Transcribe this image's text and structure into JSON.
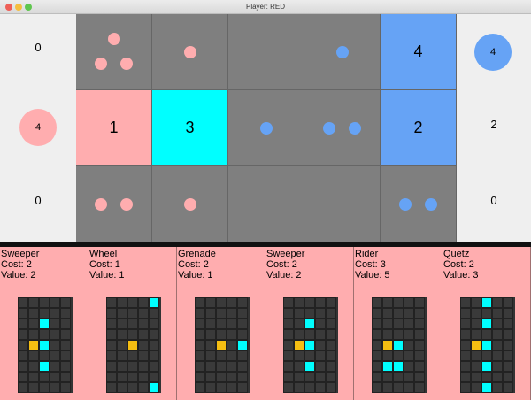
{
  "window": {
    "title": "Player: RED"
  },
  "colors": {
    "red_piece": "#ffadaf",
    "blue_piece": "#66a3f5",
    "cyan_piece": "#00ffff",
    "board_bg": "#7f7f7f",
    "center": "#f5be12",
    "affected": "#00ffff"
  },
  "left_scores": [
    "0",
    "",
    "0"
  ],
  "left_hand": {
    "count": "4"
  },
  "right_scores": [
    "",
    "2",
    "0"
  ],
  "right_hand": {
    "count": "4"
  },
  "board": [
    [
      {
        "owner": "",
        "rank": "",
        "pips": 3,
        "pipColor": "red"
      },
      {
        "owner": "",
        "rank": "",
        "pips": 1,
        "pipColor": "red"
      },
      {
        "owner": "",
        "rank": "",
        "pips": 0,
        "pipColor": ""
      },
      {
        "owner": "",
        "rank": "",
        "pips": 1,
        "pipColor": "blue"
      },
      {
        "owner": "blue",
        "rank": "4",
        "pips": 0,
        "pipColor": ""
      }
    ],
    [
      {
        "owner": "red",
        "rank": "1",
        "pips": 0,
        "pipColor": ""
      },
      {
        "owner": "cyan",
        "rank": "3",
        "pips": 0,
        "pipColor": ""
      },
      {
        "owner": "",
        "rank": "",
        "pips": 1,
        "pipColor": "blue"
      },
      {
        "owner": "",
        "rank": "",
        "pips": 2,
        "pipColor": "blue"
      },
      {
        "owner": "blue",
        "rank": "2",
        "pips": 0,
        "pipColor": ""
      }
    ],
    [
      {
        "owner": "",
        "rank": "",
        "pips": 2,
        "pipColor": "red"
      },
      {
        "owner": "",
        "rank": "",
        "pips": 1,
        "pipColor": "red"
      },
      {
        "owner": "",
        "rank": "",
        "pips": 0,
        "pipColor": ""
      },
      {
        "owner": "",
        "rank": "",
        "pips": 0,
        "pipColor": ""
      },
      {
        "owner": "",
        "rank": "",
        "pips": 2,
        "pipColor": "blue"
      }
    ]
  ],
  "cards": [
    {
      "name": "Sweeper",
      "cost": "Cost: 2",
      "value": "Value: 2",
      "pattern": [
        "00000",
        "00000",
        "00100",
        "00000",
        "0O100",
        "00000",
        "00100",
        "00000",
        "00000"
      ]
    },
    {
      "name": "Wheel",
      "cost": "Cost: 1",
      "value": "Value: 1",
      "pattern": [
        "00001",
        "00000",
        "00000",
        "00000",
        "00O00",
        "00000",
        "00000",
        "00000",
        "00001"
      ]
    },
    {
      "name": "Grenade",
      "cost": "Cost: 2",
      "value": "Value: 1",
      "pattern": [
        "00000",
        "00000",
        "00000",
        "00000",
        "00O01",
        "00000",
        "00000",
        "00000",
        "00000"
      ]
    },
    {
      "name": "Sweeper",
      "cost": "Cost: 2",
      "value": "Value: 2",
      "pattern": [
        "00000",
        "00000",
        "00100",
        "00000",
        "0O100",
        "00000",
        "00100",
        "00000",
        "00000"
      ]
    },
    {
      "name": "Rider",
      "cost": "Cost: 3",
      "value": "Value: 5",
      "pattern": [
        "00000",
        "00000",
        "00000",
        "00000",
        "0O100",
        "00000",
        "01100",
        "00000",
        "00000"
      ]
    },
    {
      "name": "Quetz",
      "cost": "Cost: 2",
      "value": "Value: 3",
      "pattern": [
        "00100",
        "00000",
        "00100",
        "00000",
        "0O100",
        "00000",
        "00100",
        "00000",
        "00100"
      ]
    }
  ]
}
